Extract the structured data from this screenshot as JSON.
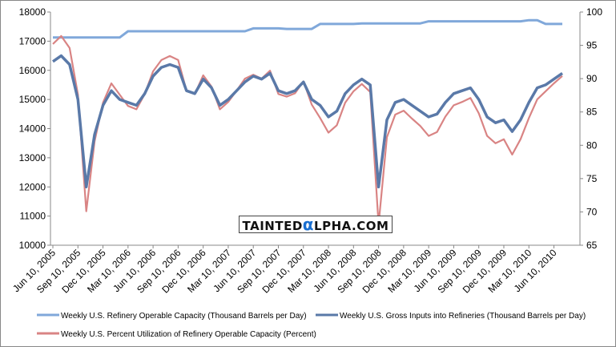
{
  "chart_data": {
    "type": "line",
    "title": "",
    "x_unit": "months since Jun 2005",
    "x_tick_labels": [
      "Jun 10, 2005",
      "Sep 10, 2005",
      "Dec 10, 2005",
      "Mar 10, 2006",
      "Jun 10, 2006",
      "Sep 10, 2006",
      "Dec 10, 2006",
      "Mar 10, 2007",
      "Jun 10, 2007",
      "Sep 10, 2007",
      "Dec 10, 2007",
      "Mar 10, 2008",
      "Jun 10, 2008",
      "Sep 10, 2008",
      "Dec 10, 2008",
      "Mar 10, 2009",
      "Jun 10, 2009",
      "Sep 10, 2009",
      "Dec 10, 2009",
      "Mar 10, 2010",
      "Jun 10, 2010"
    ],
    "x_tick_months": [
      0,
      3,
      6,
      9,
      12,
      15,
      18,
      21,
      24,
      27,
      30,
      33,
      36,
      39,
      42,
      45,
      48,
      51,
      54,
      57,
      60
    ],
    "xlim": [
      0,
      61.5
    ],
    "y_left": {
      "ylim": [
        10000,
        18000
      ],
      "ticks": [
        "10000",
        "11000",
        "12000",
        "13000",
        "14000",
        "15000",
        "16000",
        "17000",
        "18000"
      ]
    },
    "y_right": {
      "ylim": [
        65,
        100
      ],
      "ticks": [
        "65",
        "70",
        "75",
        "80",
        "85",
        "90",
        "95",
        "100"
      ]
    },
    "grid": "none",
    "legend_placement": "bottom",
    "series": [
      {
        "name": "Weekly U.S. Refinery Operable Capacity  (Thousand Barrels per Day)",
        "axis": "left",
        "color": "#80a8da",
        "values": [
          17125,
          17125,
          17125,
          17125,
          17125,
          17125,
          17125,
          17125,
          17125,
          17340,
          17340,
          17340,
          17340,
          17340,
          17340,
          17340,
          17340,
          17340,
          17340,
          17340,
          17340,
          17340,
          17340,
          17340,
          17440,
          17440,
          17440,
          17440,
          17420,
          17420,
          17420,
          17420,
          17590,
          17590,
          17590,
          17590,
          17590,
          17610,
          17610,
          17610,
          17610,
          17610,
          17610,
          17610,
          17610,
          17680,
          17680,
          17680,
          17680,
          17680,
          17680,
          17680,
          17680,
          17680,
          17680,
          17680,
          17680,
          17720,
          17720,
          17590,
          17590,
          17590
        ]
      },
      {
        "name": "Weekly U.S. Gross Inputs into Refineries  (Thousand Barrels per Day)",
        "axis": "left",
        "color": "#5a79a8",
        "values": [
          16300,
          16500,
          16200,
          15000,
          12000,
          13800,
          14800,
          15300,
          15000,
          14900,
          14800,
          15200,
          15800,
          16100,
          16200,
          16100,
          15300,
          15200,
          15700,
          15400,
          14800,
          15000,
          15300,
          15600,
          15800,
          15700,
          15900,
          15300,
          15200,
          15300,
          15600,
          15000,
          14800,
          14400,
          14600,
          15200,
          15500,
          15700,
          15500,
          12000,
          14300,
          14900,
          15000,
          14800,
          14600,
          14400,
          14500,
          14900,
          15200,
          15300,
          15400,
          15000,
          14400,
          14200,
          14300,
          13900,
          14300,
          14900,
          15400,
          15500,
          15700,
          15900
        ]
      },
      {
        "name": "Weekly U.S. Percent Utilization of Refinery Operable Capacity  (Percent)",
        "axis": "right",
        "color": "#d98484",
        "values": [
          95.2,
          96.4,
          94.6,
          87.6,
          70.1,
          80.6,
          86.4,
          89.3,
          87.6,
          85.9,
          85.4,
          87.7,
          91.1,
          92.8,
          93.4,
          92.8,
          88.2,
          87.7,
          90.5,
          88.8,
          85.4,
          86.5,
          88.2,
          90.0,
          90.6,
          90.0,
          91.2,
          87.7,
          87.3,
          87.8,
          89.6,
          86.1,
          84.1,
          81.9,
          83.0,
          86.4,
          88.1,
          89.2,
          88.0,
          68.1,
          81.2,
          84.6,
          85.2,
          84.0,
          82.9,
          81.4,
          82.0,
          84.3,
          86.0,
          86.5,
          87.1,
          84.8,
          81.4,
          80.3,
          80.9,
          78.6,
          80.9,
          84.1,
          86.9,
          88.1,
          89.3,
          90.4
        ]
      }
    ]
  },
  "watermark": {
    "text_before": "TAINTED",
    "alpha": "α",
    "text_after": "LPHA.COM"
  }
}
